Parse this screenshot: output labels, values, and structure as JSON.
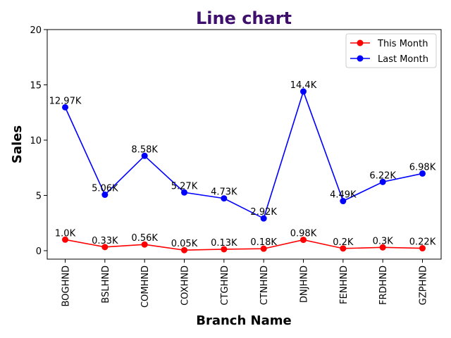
{
  "chart_data": {
    "type": "line",
    "title": "Line chart",
    "title_color": "#3f0f6e",
    "xlabel": "Branch Name",
    "ylabel": "Sales",
    "ylim": [
      0,
      20
    ],
    "yticks": [
      "0",
      "5",
      "10",
      "15",
      "20"
    ],
    "ytick_values": [
      0,
      5,
      10,
      15,
      20
    ],
    "legend_placement": "top-right",
    "grid": false,
    "categories": [
      "BOGHND",
      "BSLHND",
      "COMHND",
      "COXHND",
      "CTGHND",
      "CTNHND",
      "DNJHND",
      "FENHND",
      "FRDHND",
      "GZPHND"
    ],
    "series": [
      {
        "name": "This Month",
        "color": "#ff0000",
        "values": [
          1.0,
          0.33,
          0.56,
          0.05,
          0.13,
          0.18,
          0.98,
          0.2,
          0.3,
          0.22
        ],
        "labels": [
          "1.0K",
          "0.33K",
          "0.56K",
          "0.05K",
          "0.13K",
          "0.18K",
          "0.98K",
          "0.2K",
          "0.3K",
          "0.22K"
        ]
      },
      {
        "name": "Last Month",
        "color": "#0000ff",
        "values": [
          12.97,
          5.06,
          8.58,
          5.27,
          4.73,
          2.92,
          14.4,
          4.49,
          6.22,
          6.98
        ],
        "labels": [
          "12.97K",
          "5.06K",
          "8.58K",
          "5.27K",
          "4.73K",
          "2.92K",
          "14.4K",
          "4.49K",
          "6.22K",
          "6.98K"
        ]
      }
    ]
  }
}
